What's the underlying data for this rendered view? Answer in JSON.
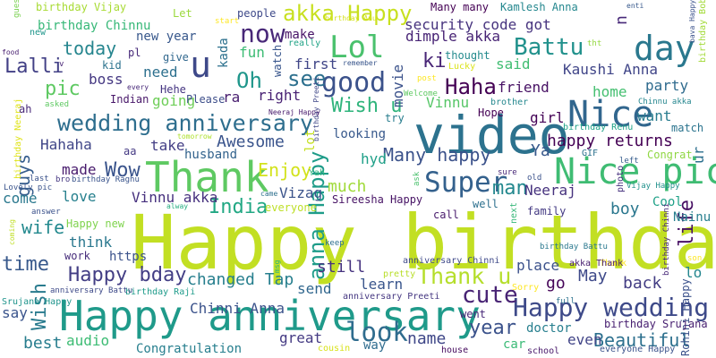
{
  "colors": {
    "background": "#ffffff"
  },
  "words": [
    {
      "text": "Happy birthday",
      "color": "#c2df23"
    },
    {
      "text": "Happy anniversary",
      "color": "#1f9a8a"
    },
    {
      "text": "video",
      "color": "#2c728e"
    },
    {
      "text": "Thank",
      "color": "#5ec962"
    },
    {
      "text": "Nice pic",
      "color": "#3fbc73"
    },
    {
      "text": "wedding anniversary",
      "color": "#2e6e8e"
    },
    {
      "text": "Lol",
      "color": "#4ac16d"
    },
    {
      "text": "day",
      "color": "#2a788e"
    },
    {
      "text": "Nice",
      "color": "#31668e"
    },
    {
      "text": "Super",
      "color": "#34618d"
    },
    {
      "text": "akka Happy",
      "color": "#c8e020"
    },
    {
      "text": "Happy wedding",
      "color": "#3e4a89"
    },
    {
      "text": "Thank u",
      "color": "#b5de2b"
    },
    {
      "text": "anna Happy",
      "color": "#1e9c89"
    },
    {
      "text": "good",
      "color": "#3b528b"
    },
    {
      "text": "look",
      "color": "#2f6c8e"
    },
    {
      "text": "Battu",
      "color": "#21918c"
    },
    {
      "text": "cute",
      "color": "#482374"
    },
    {
      "text": "u",
      "color": "#3e4989"
    },
    {
      "text": "now",
      "color": "#482878"
    },
    {
      "text": "Wish u",
      "color": "#2fb47c"
    },
    {
      "text": "time",
      "color": "#38598c"
    },
    {
      "text": "Happy bday",
      "color": "#433e85"
    },
    {
      "text": "Haha",
      "color": "#440154"
    },
    {
      "text": "Oh",
      "color": "#1f968b"
    },
    {
      "text": "see",
      "color": "#2d708e"
    },
    {
      "text": "Many happy",
      "color": "#3b528b"
    },
    {
      "text": "India",
      "color": "#22a884"
    },
    {
      "text": "Wow",
      "color": "#3a548c"
    },
    {
      "text": "Enjoy",
      "color": "#d2e21b"
    },
    {
      "text": "Beautiful",
      "color": "#2d708e"
    },
    {
      "text": "year",
      "color": "#3b528b"
    },
    {
      "text": "man",
      "color": "#23888e"
    },
    {
      "text": "life",
      "color": "#471063"
    },
    {
      "text": "ki",
      "color": "#482576"
    },
    {
      "text": "Wish",
      "color": "#297b8e"
    },
    {
      "text": "changed Tap",
      "color": "#277f8e"
    },
    {
      "text": "Hahaha",
      "color": "#404688"
    },
    {
      "text": "Awesome",
      "color": "#3a548c"
    },
    {
      "text": "today",
      "color": "#25858e"
    },
    {
      "text": "guys",
      "color": "#365d8d"
    },
    {
      "text": "pic",
      "color": "#5ec962"
    },
    {
      "text": "Lalli",
      "color": "#424086"
    },
    {
      "text": "happy returns",
      "color": "#440154"
    },
    {
      "text": "Chinni Anna",
      "color": "#3b528b"
    },
    {
      "text": "name",
      "color": "#3f4788"
    },
    {
      "text": "wife",
      "color": "#23898e"
    },
    {
      "text": "back",
      "color": "#433d84"
    },
    {
      "text": "May",
      "color": "#3e4989"
    },
    {
      "text": "audio",
      "color": "#3dbc74"
    },
    {
      "text": "best",
      "color": "#287d8e"
    },
    {
      "text": "great",
      "color": "#443a83"
    },
    {
      "text": "still",
      "color": "#46337f"
    },
    {
      "text": "send",
      "color": "#31678e"
    },
    {
      "text": "learn",
      "color": "#39558c"
    },
    {
      "text": "place",
      "color": "#3b518b"
    },
    {
      "text": "go",
      "color": "#450559"
    },
    {
      "text": "Neeraj",
      "color": "#46327e"
    },
    {
      "text": "Vizag",
      "color": "#3a538b"
    },
    {
      "text": "much",
      "color": "#a0da39"
    },
    {
      "text": "hyd",
      "color": "#1fa088"
    },
    {
      "text": "Ya",
      "color": "#38598c"
    },
    {
      "text": "friend",
      "color": "#471164"
    },
    {
      "text": "party",
      "color": "#2f6b8e"
    },
    {
      "text": "said",
      "color": "#40bd72"
    },
    {
      "text": "home",
      "color": "#44bf70"
    },
    {
      "text": "want",
      "color": "#287c8e"
    },
    {
      "text": "girl",
      "color": "#440256"
    },
    {
      "text": "Kaushi Anna",
      "color": "#404588"
    },
    {
      "text": "Vinnu akka",
      "color": "#46307e"
    },
    {
      "text": "made",
      "color": "#481b6d"
    },
    {
      "text": "love",
      "color": "#27808e"
    },
    {
      "text": "think",
      "color": "#2a788e"
    },
    {
      "text": "boy",
      "color": "#2a778e"
    },
    {
      "text": "Cool",
      "color": "#1fa188"
    },
    {
      "text": "Nainu",
      "color": "#277e8e"
    },
    {
      "text": "take",
      "color": "#433e85"
    },
    {
      "text": "husband",
      "color": "#33638d"
    },
    {
      "text": "Happy new",
      "color": "#7fd34e"
    },
    {
      "text": "https",
      "color": "#3b528b"
    },
    {
      "text": "work",
      "color": "#472d7b"
    },
    {
      "text": "Congratulation",
      "color": "#277f8e"
    },
    {
      "text": "Rohini Happy",
      "color": "#3b518b"
    },
    {
      "text": "birthday Srujana",
      "color": "#482071"
    },
    {
      "text": "everyone Happy",
      "color": "#3b528b"
    },
    {
      "text": "school",
      "color": "#48186a"
    },
    {
      "text": "house",
      "color": "#460b5e"
    },
    {
      "text": "car",
      "color": "#3aba76"
    },
    {
      "text": "doctor",
      "color": "#277f8e"
    },
    {
      "text": "even",
      "color": "#414487"
    },
    {
      "text": "went",
      "color": "#482878"
    },
    {
      "text": "Sorry",
      "color": "#fde725"
    },
    {
      "text": "Thank",
      "color": "#fde725"
    },
    {
      "text": "way",
      "color": "#2f6c8e"
    },
    {
      "text": "cousin",
      "color": "#d8e219"
    },
    {
      "text": "pretty",
      "color": "#b8de29"
    },
    {
      "text": "anniversary Preeti",
      "color": "#453781"
    },
    {
      "text": "anniversary Chinni",
      "color": "#3e4989"
    },
    {
      "text": "birthday Raji",
      "color": "#1e9b8a"
    },
    {
      "text": "Srujana Happy",
      "color": "#1f948c"
    },
    {
      "text": "anniversary Battu",
      "color": "#3e4a89"
    },
    {
      "text": "first",
      "color": "#404688"
    },
    {
      "text": "right",
      "color": "#482173"
    },
    {
      "text": "movie",
      "color": "#3b528b"
    },
    {
      "text": "going",
      "color": "#6ece58"
    },
    {
      "text": "Hehe",
      "color": "#453581"
    },
    {
      "text": "Indian",
      "color": "#481769"
    },
    {
      "text": "Please",
      "color": "#3d4e8a"
    },
    {
      "text": "ra",
      "color": "#481d6f"
    },
    {
      "text": "boss",
      "color": "#453882"
    },
    {
      "text": "need",
      "color": "#2d708e"
    },
    {
      "text": "give",
      "color": "#31688e"
    },
    {
      "text": "fun",
      "color": "#3dbc74"
    },
    {
      "text": "kada",
      "color": "#2d718e"
    },
    {
      "text": "watch",
      "color": "#39568c"
    },
    {
      "text": "make",
      "color": "#481467"
    },
    {
      "text": "dimple akka",
      "color": "#482475"
    },
    {
      "text": "thought",
      "color": "#238a8d"
    },
    {
      "text": "Lucky",
      "color": "#dae319"
    },
    {
      "text": "security code got",
      "color": "#46337e"
    },
    {
      "text": "Kamlesh Anna",
      "color": "#24878e"
    },
    {
      "text": "Many many",
      "color": "#440154"
    },
    {
      "text": "birthday Bobsy",
      "color": "#a2da37"
    },
    {
      "text": "n",
      "color": "#482979"
    },
    {
      "text": "Vinnu",
      "color": "#56c667"
    },
    {
      "text": "Hope",
      "color": "#440154"
    },
    {
      "text": "birthday Renu",
      "color": "#1fa287"
    },
    {
      "text": "match",
      "color": "#2b748e"
    },
    {
      "text": "looking",
      "color": "#38598c"
    },
    {
      "text": "try",
      "color": "#287d8e"
    },
    {
      "text": "brother",
      "color": "#24878e"
    },
    {
      "text": "Chinnu akka",
      "color": "#24868e"
    },
    {
      "text": "GIF",
      "color": "#2d718e"
    },
    {
      "text": "left",
      "color": "#365d8d"
    },
    {
      "text": "photo",
      "color": "#46327e"
    },
    {
      "text": "Congrat",
      "color": "#90d743"
    },
    {
      "text": "Vijay Happy",
      "color": "#21918c"
    },
    {
      "text": "old",
      "color": "#3b528b"
    },
    {
      "text": "sure",
      "color": "#482878"
    },
    {
      "text": "well",
      "color": "#2d708e"
    },
    {
      "text": "next",
      "color": "#35b779"
    },
    {
      "text": "family",
      "color": "#443a83"
    },
    {
      "text": "birthday Chinni",
      "color": "#482979"
    },
    {
      "text": "call",
      "color": "#481a6c"
    },
    {
      "text": "keep",
      "color": "#2e6f8e"
    },
    {
      "text": "full",
      "color": "#2c728e"
    },
    {
      "text": "akka Thank",
      "color": "#481f70"
    },
    {
      "text": "birthday Battu",
      "color": "#2a788e"
    },
    {
      "text": "son",
      "color": "#fde725"
    },
    {
      "text": "lo",
      "color": "#24868e"
    },
    {
      "text": "ur",
      "color": "#2d708e"
    },
    {
      "text": "lot",
      "color": "#c5e021"
    },
    {
      "text": "Yah",
      "color": "#2fb47c"
    },
    {
      "text": "ask",
      "color": "#4ac16d"
    },
    {
      "text": "Sireesha Happy",
      "color": "#471365"
    },
    {
      "text": "everyone",
      "color": "#bddf26"
    },
    {
      "text": "came",
      "color": "#2d708e"
    },
    {
      "text": "alway",
      "color": "#26ad81"
    },
    {
      "text": "birthday Raghu",
      "color": "#3a548c"
    },
    {
      "text": "bro",
      "color": "#453781"
    },
    {
      "text": "last",
      "color": "#3b528b"
    },
    {
      "text": "come",
      "color": "#2a788e"
    },
    {
      "text": "Lovely pic",
      "color": "#3a548c"
    },
    {
      "text": "answer",
      "color": "#3b528b"
    },
    {
      "text": "coming",
      "color": "#c0df25"
    },
    {
      "text": "msg",
      "color": "#29af7f"
    },
    {
      "text": "say",
      "color": "#3a548c"
    },
    {
      "text": "aa",
      "color": "#443983"
    },
    {
      "text": "tomorrow",
      "color": "#ade028"
    },
    {
      "text": "birthday Neeraj",
      "color": "#dfe318"
    },
    {
      "text": "asked",
      "color": "#5ec962"
    },
    {
      "text": "ah",
      "color": "#482878"
    },
    {
      "text": "birthday Preeti",
      "color": "#3f4788"
    },
    {
      "text": "Neeraj Happy",
      "color": "#481b6d"
    },
    {
      "text": "Welcome",
      "color": "#5ec962"
    },
    {
      "text": "post",
      "color": "#fde725"
    },
    {
      "text": "remember",
      "color": "#39568c"
    },
    {
      "text": "really",
      "color": "#20a386"
    },
    {
      "text": "kid",
      "color": "#2c738e"
    },
    {
      "text": "pl",
      "color": "#472a7a"
    },
    {
      "text": "every",
      "color": "#482979"
    },
    {
      "text": "food",
      "color": "#481f70"
    },
    {
      "text": "guess",
      "color": "#7ad151"
    },
    {
      "text": "Let",
      "color": "#9bd93c"
    },
    {
      "text": "start",
      "color": "#fde725"
    },
    {
      "text": "people",
      "color": "#3e4989"
    },
    {
      "text": "birthday Anu",
      "color": "#d5e21a"
    },
    {
      "text": "tht",
      "color": "#94d840"
    },
    {
      "text": "enti",
      "color": "#38598c"
    },
    {
      "text": "bava Happy",
      "color": "#3b528b"
    },
    {
      "text": "birthday Vijay",
      "color": "#a8db34"
    },
    {
      "text": "birthday Chinnu",
      "color": "#37b878"
    },
    {
      "text": "new",
      "color": "#1f968b"
    },
    {
      "text": "new year",
      "color": "#38588c"
    },
    {
      "text": "v",
      "color": "#482475"
    }
  ]
}
